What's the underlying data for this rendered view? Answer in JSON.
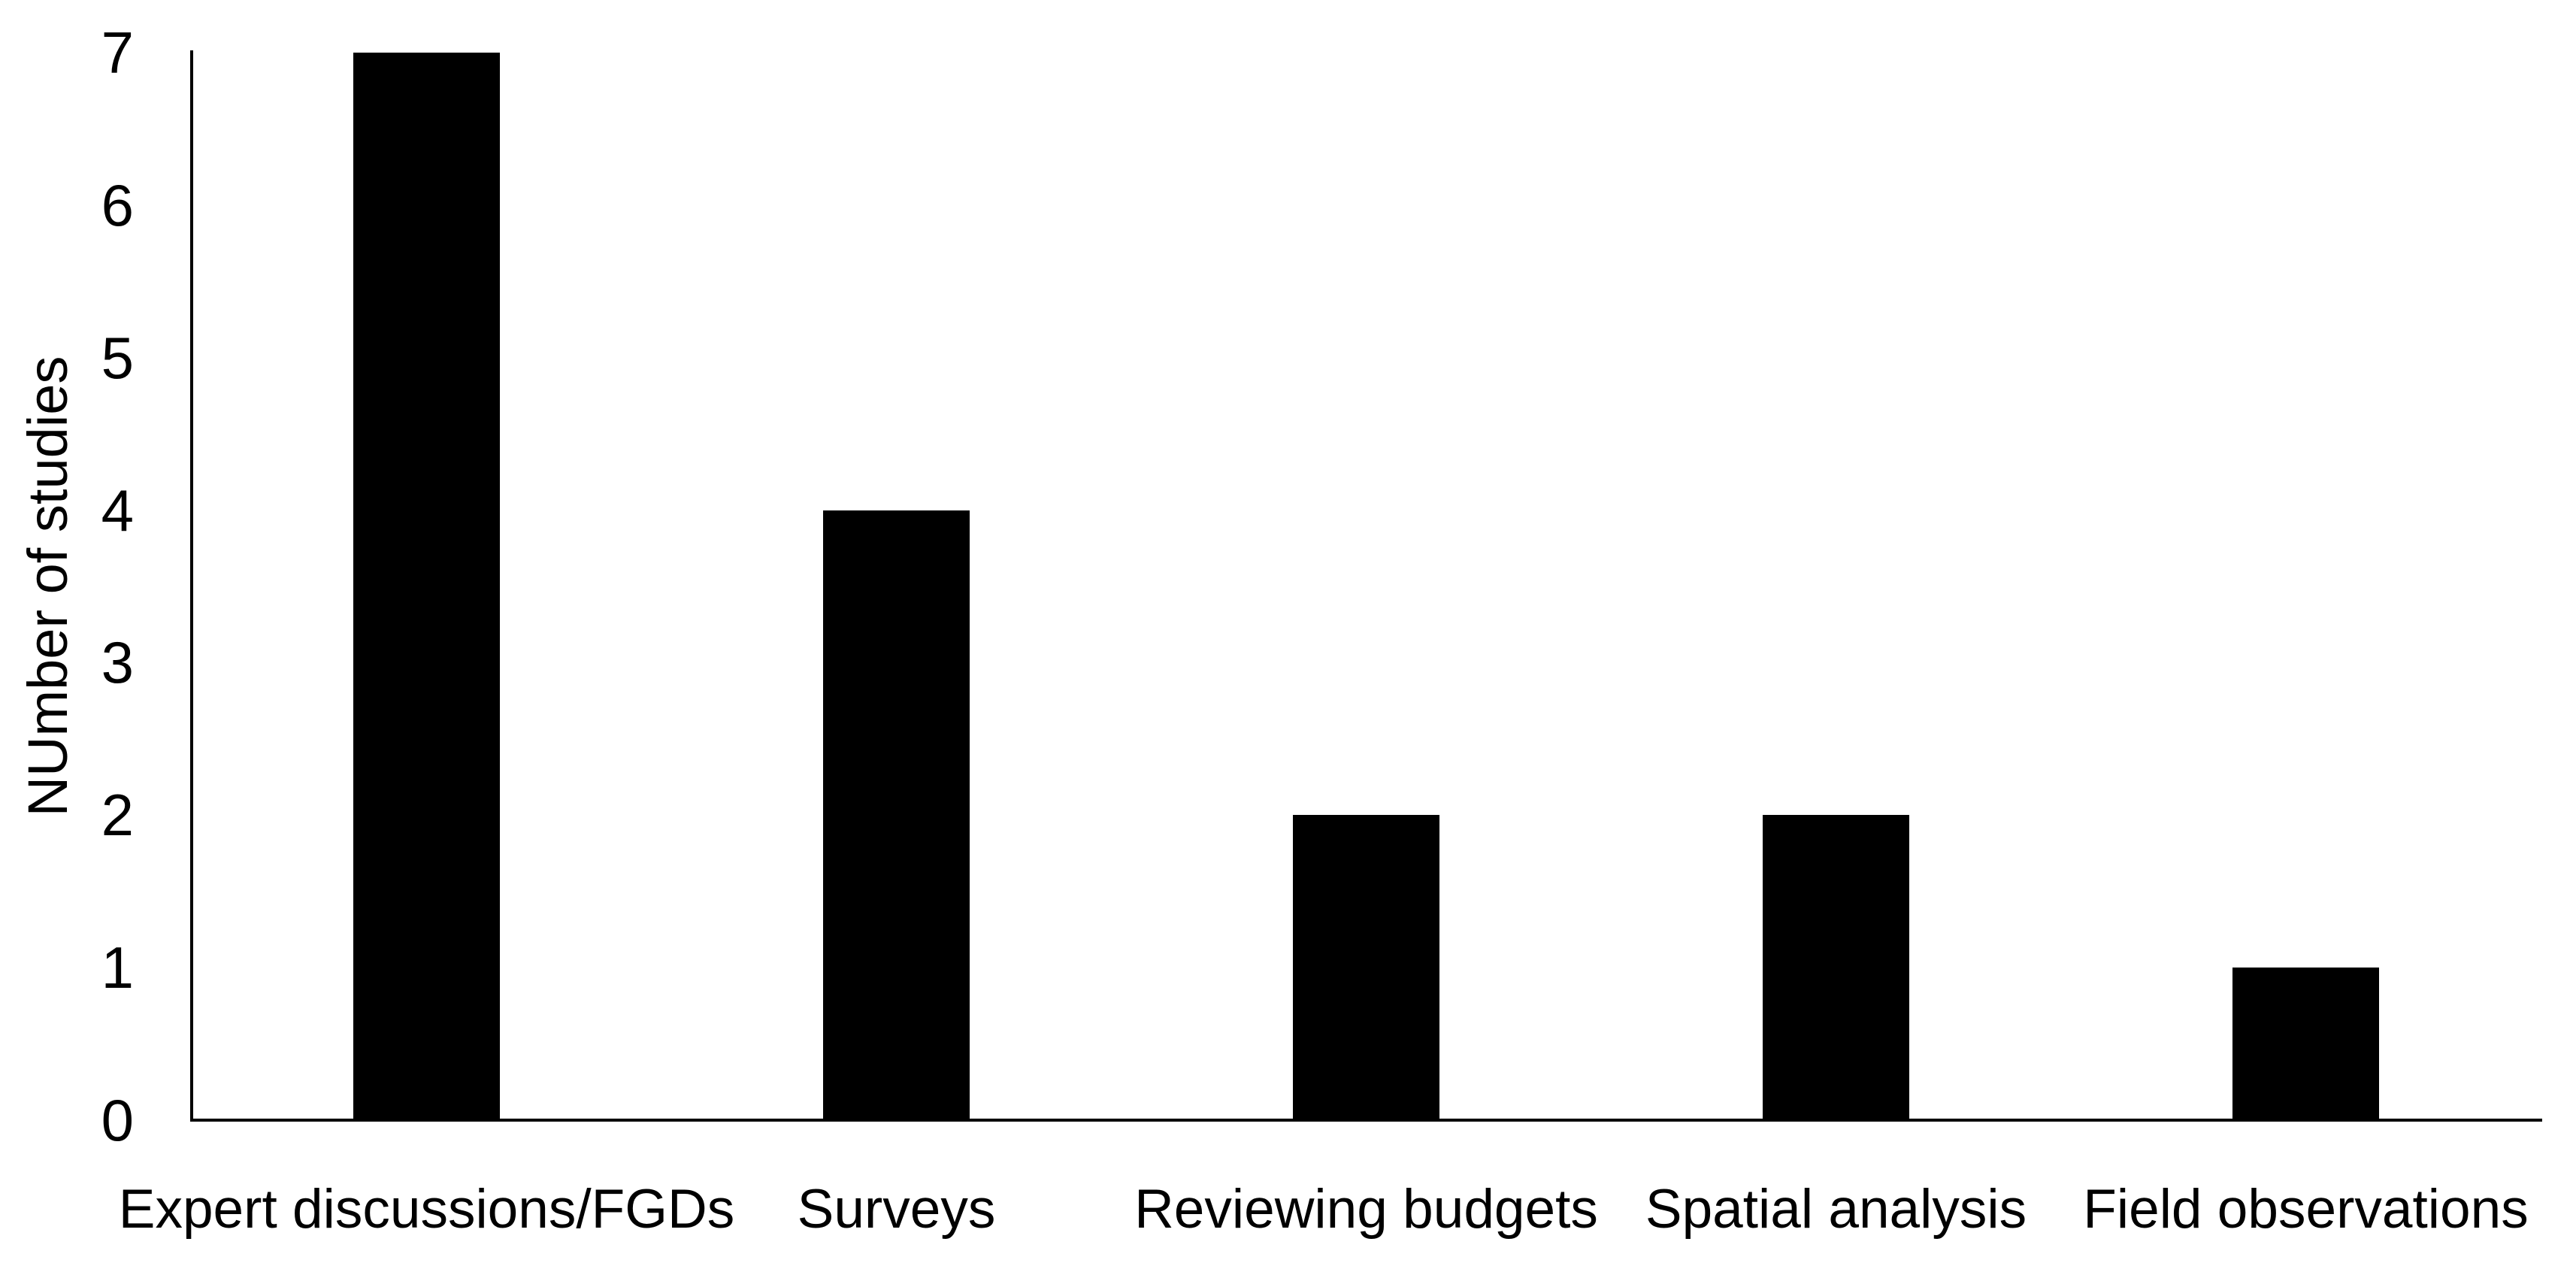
{
  "chart_data": {
    "type": "bar",
    "title": "",
    "xlabel": "",
    "ylabel": "NUmber of studies",
    "categories": [
      "Expert discussions/FGDs",
      "Surveys",
      "Reviewing budgets",
      "Spatial analysis",
      "Field observations"
    ],
    "values": [
      7,
      4,
      2,
      2,
      1
    ],
    "y_ticks": [
      0,
      1,
      2,
      3,
      4,
      5,
      6,
      7
    ],
    "ylim": [
      0,
      7
    ],
    "grid": false,
    "legend_position": "none",
    "bar_color": "#000000",
    "axis_color": "#000000",
    "text_color": "#000000",
    "background_color": "#ffffff"
  }
}
